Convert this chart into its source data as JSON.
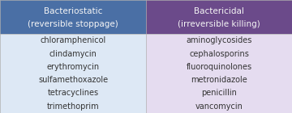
{
  "col1_header_line1": "Bacteriostatic",
  "col1_header_line2": "(reversible stoppage)",
  "col2_header_line1": "Bactericidal",
  "col2_header_line2": "(irreversible killing)",
  "col1_items": [
    "chloramphenicol",
    "clindamycin",
    "erythromycin",
    "sulfamethoxazole",
    "tetracyclines",
    "trimethoprim"
  ],
  "col2_items": [
    "aminoglycosides",
    "cephalosporins",
    "fluoroquinolones",
    "metronidazole",
    "penicillin",
    "vancomycin"
  ],
  "col1_header_bg": "#4a6fa5",
  "col2_header_bg": "#6b4a8a",
  "col1_body_bg": "#dde8f5",
  "col2_body_bg": "#e5dcf0",
  "header_text_color": "#f5f5f5",
  "body_text_color": "#333333",
  "border_color": "#b0b0b0",
  "header_fontsize": 7.5,
  "body_fontsize": 7.0,
  "fig_bg": "#e8e8e8"
}
